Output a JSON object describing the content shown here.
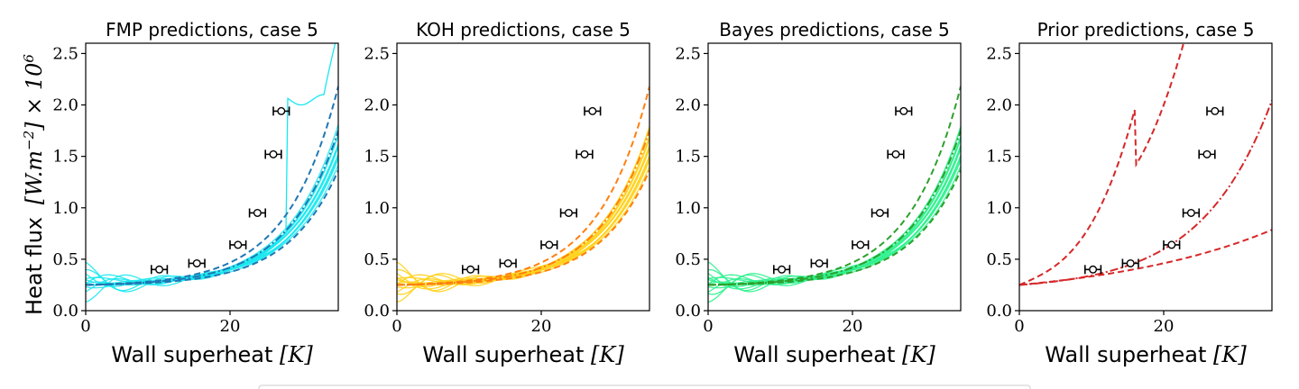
{
  "figure": {
    "ylabel_text": "Heat flux",
    "ylabel_math": "[W.m",
    "ylabel_exp": "−2",
    "ylabel_tail": "] × 10",
    "ylabel_exp2": "6",
    "xlabel_text": "Wall superheat ",
    "xlabel_math": "[K]",
    "legend_box": "legend"
  },
  "chart_data": [
    {
      "type": "line",
      "title": "FMP predictions, case 5",
      "xlim": [
        0,
        35
      ],
      "ylim": [
        0,
        2.6
      ],
      "xticks": [
        "0",
        "20"
      ],
      "yticks": [
        "0.0",
        "0.5",
        "1.0",
        "1.5",
        "2.0",
        "2.5"
      ],
      "sample_color": "#18e8f0",
      "band_color": "#1f77b4",
      "observations": {
        "x": [
          10.2,
          15.4,
          21.1,
          23.8,
          26.0,
          27.1
        ],
        "y": [
          0.4,
          0.46,
          0.64,
          0.95,
          1.52,
          1.94
        ],
        "xerr": 1.1
      }
    },
    {
      "type": "line",
      "title": "KOH predictions, case 5",
      "xlim": [
        0,
        35
      ],
      "ylim": [
        0,
        2.6
      ],
      "xticks": [
        "0",
        "20"
      ],
      "yticks": [
        "0.0",
        "0.5",
        "1.0",
        "1.5",
        "2.0",
        "2.5"
      ],
      "sample_color": "#ffd11a",
      "band_color": "#ff7f0e",
      "observations": {
        "x": [
          10.2,
          15.4,
          21.1,
          23.8,
          26.0,
          27.1
        ],
        "y": [
          0.4,
          0.46,
          0.64,
          0.95,
          1.52,
          1.94
        ],
        "xerr": 1.1
      }
    },
    {
      "type": "line",
      "title": "Bayes predictions, case 5",
      "xlim": [
        0,
        35
      ],
      "ylim": [
        0,
        2.6
      ],
      "xticks": [
        "0",
        "20"
      ],
      "yticks": [
        "0.0",
        "0.5",
        "1.0",
        "1.5",
        "2.0",
        "2.5"
      ],
      "sample_color": "#2ef28e",
      "band_color": "#2ca02c",
      "observations": {
        "x": [
          10.2,
          15.4,
          21.1,
          23.8,
          26.0,
          27.1
        ],
        "y": [
          0.4,
          0.46,
          0.64,
          0.95,
          1.52,
          1.94
        ],
        "xerr": 1.1
      }
    },
    {
      "type": "line",
      "title": "Prior predictions, case 5",
      "xlim": [
        0,
        35
      ],
      "ylim": [
        0,
        2.6
      ],
      "xticks": [
        "0",
        "20"
      ],
      "yticks": [
        "0.0",
        "0.5",
        "1.0",
        "1.5",
        "2.0",
        "2.5"
      ],
      "sample_color": "#d62728",
      "band_color": "#d62728",
      "observations": {
        "x": [
          10.2,
          15.4,
          21.1,
          23.8,
          26.0,
          27.1
        ],
        "y": [
          0.4,
          0.46,
          0.64,
          0.95,
          1.52,
          1.94
        ],
        "xerr": 1.1
      }
    }
  ]
}
